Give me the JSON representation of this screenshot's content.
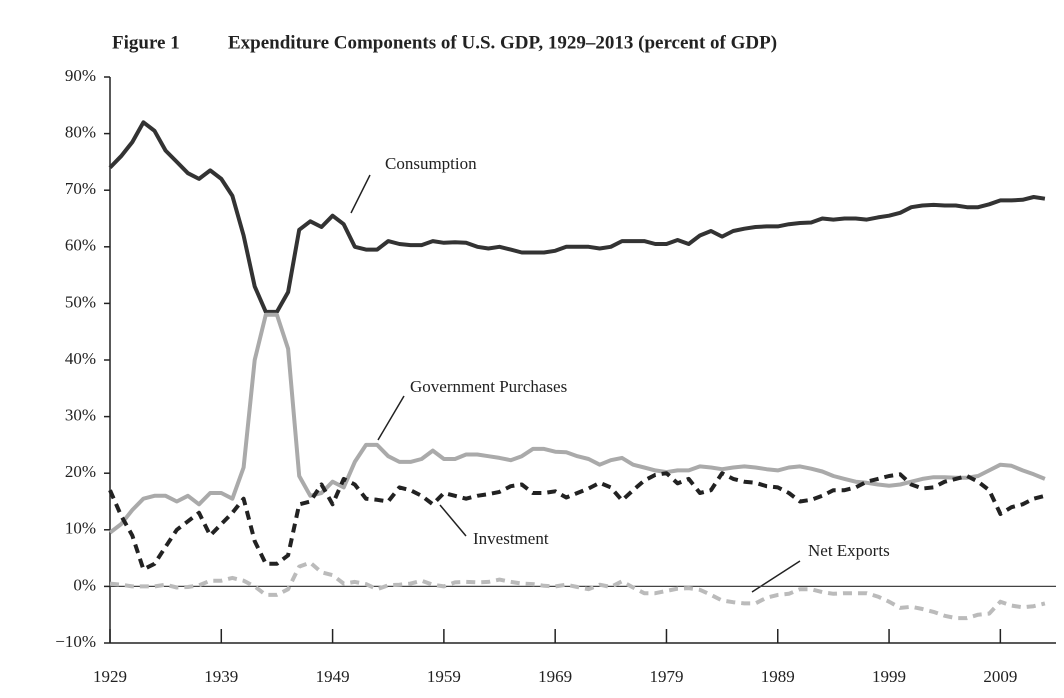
{
  "chart_data": {
    "type": "line",
    "figure_label": "Figure 1",
    "title": "Expenditure Components of U.S. GDP, 1929–2013 (percent of GDP)",
    "x": [
      1929,
      1930,
      1931,
      1932,
      1933,
      1934,
      1935,
      1936,
      1937,
      1938,
      1939,
      1940,
      1941,
      1942,
      1943,
      1944,
      1945,
      1946,
      1947,
      1948,
      1949,
      1950,
      1951,
      1952,
      1953,
      1954,
      1955,
      1956,
      1957,
      1958,
      1959,
      1960,
      1961,
      1962,
      1963,
      1964,
      1965,
      1966,
      1967,
      1968,
      1969,
      1970,
      1971,
      1972,
      1973,
      1974,
      1975,
      1976,
      1977,
      1978,
      1979,
      1980,
      1981,
      1982,
      1983,
      1984,
      1985,
      1986,
      1987,
      1988,
      1989,
      1990,
      1991,
      1992,
      1993,
      1994,
      1995,
      1996,
      1997,
      1998,
      1999,
      2000,
      2001,
      2002,
      2003,
      2004,
      2005,
      2006,
      2007,
      2008,
      2009,
      2010,
      2011,
      2012,
      2013
    ],
    "series": [
      {
        "name": "Consumption",
        "color": "#333333",
        "dash": false,
        "values": [
          74,
          76,
          78.5,
          82,
          80.5,
          77,
          75,
          73,
          72,
          73.5,
          72,
          69,
          62,
          53,
          48.5,
          48.5,
          52,
          63,
          64.5,
          63.5,
          65.5,
          64,
          60,
          59.5,
          59.5,
          61,
          60.5,
          60.3,
          60.3,
          61,
          60.7,
          60.8,
          60.7,
          60,
          59.7,
          60,
          59.5,
          59,
          59,
          59,
          59.3,
          60,
          60,
          60,
          59.7,
          60,
          61,
          61,
          61,
          60.5,
          60.5,
          61.2,
          60.5,
          62,
          62.8,
          61.8,
          62.8,
          63.2,
          63.5,
          63.6,
          63.6,
          64,
          64.2,
          64.3,
          65,
          64.8,
          65,
          65,
          64.8,
          65.2,
          65.5,
          66,
          67,
          67.3,
          67.4,
          67.3,
          67.3,
          67,
          67,
          67.5,
          68.2,
          68.2,
          68.3,
          68.8,
          68.5
        ]
      },
      {
        "name": "Government Purchases",
        "color": "#aaaaaa",
        "dash": false,
        "values": [
          9.5,
          11,
          13.5,
          15.5,
          16,
          16,
          15,
          16,
          14.5,
          16.5,
          16.5,
          15.5,
          21,
          40,
          48,
          48,
          42,
          19.5,
          16,
          16.5,
          18.5,
          17.5,
          22,
          25,
          25,
          23,
          22,
          22,
          22.5,
          24,
          22.5,
          22.5,
          23.3,
          23.3,
          23,
          22.7,
          22.3,
          23,
          24.3,
          24.3,
          23.8,
          23.7,
          23,
          22.5,
          21.5,
          22.3,
          22.7,
          21.5,
          21,
          20.5,
          20.2,
          20.5,
          20.5,
          21.2,
          21,
          20.7,
          21,
          21.2,
          21,
          20.7,
          20.5,
          21,
          21.2,
          20.8,
          20.3,
          19.5,
          19,
          18.5,
          18.3,
          18,
          17.8,
          18,
          18.5,
          19,
          19.3,
          19.3,
          19.2,
          19.2,
          19.5,
          20.5,
          21.5,
          21.3,
          20.5,
          19.8,
          19
        ]
      },
      {
        "name": "Investment",
        "color": "#222222",
        "dash": true,
        "values": [
          17,
          12.5,
          9,
          3,
          4,
          7,
          10,
          11.5,
          13,
          9,
          11,
          13,
          15.5,
          8,
          4,
          4,
          5.5,
          14.5,
          15,
          18,
          14.5,
          19,
          18,
          15.5,
          15.3,
          15,
          17.5,
          17,
          16,
          14.5,
          16.5,
          16,
          15.5,
          16,
          16.3,
          16.7,
          17.7,
          18,
          16.5,
          16.5,
          16.8,
          15.7,
          16.5,
          17.3,
          18.3,
          17.5,
          15.2,
          17,
          18.7,
          19.7,
          20,
          18.2,
          19,
          16.5,
          17,
          20,
          19,
          18.5,
          18.3,
          17.7,
          17.5,
          16.5,
          15,
          15.3,
          16,
          17,
          17,
          17.5,
          18.5,
          19,
          19.5,
          19.8,
          18,
          17.3,
          17.5,
          18.5,
          19,
          19.5,
          18.5,
          17,
          12.8,
          14,
          14.5,
          15.5,
          16
        ]
      },
      {
        "name": "Net Exports",
        "color": "#bbbbbb",
        "dash": true,
        "values": [
          0.5,
          0.3,
          0,
          0,
          0,
          0.3,
          -0.2,
          -0.1,
          0.2,
          1,
          1,
          1.5,
          1,
          0,
          -1.5,
          -1.5,
          -0.5,
          3.5,
          4.2,
          2.5,
          2,
          0.5,
          0.8,
          0.4,
          -0.5,
          0.2,
          0.3,
          0.5,
          1,
          0.3,
          0,
          0.7,
          0.8,
          0.7,
          0.8,
          1.2,
          0.8,
          0.5,
          0.4,
          0.1,
          0,
          0.3,
          -0.1,
          -0.5,
          0.3,
          -0.1,
          0.9,
          -0.2,
          -1.2,
          -1.2,
          -0.8,
          -0.4,
          -0.3,
          -0.6,
          -1.5,
          -2.5,
          -2.8,
          -3,
          -3,
          -2,
          -1.5,
          -1.3,
          -0.5,
          -0.5,
          -1,
          -1.3,
          -1.2,
          -1.2,
          -1.2,
          -1.8,
          -2.7,
          -3.8,
          -3.6,
          -4,
          -4.5,
          -5.2,
          -5.6,
          -5.6,
          -5,
          -4.8,
          -2.7,
          -3.4,
          -3.7,
          -3.5,
          -3
        ]
      }
    ],
    "xlim": [
      1929,
      2014
    ],
    "xticks": [
      1929,
      1939,
      1949,
      1959,
      1969,
      1979,
      1989,
      1999,
      2009
    ],
    "ylim": [
      -10,
      90
    ],
    "yticks": [
      {
        "value": -10,
        "label": "−10%"
      },
      {
        "value": 0,
        "label": "0%"
      },
      {
        "value": 10,
        "label": "10%"
      },
      {
        "value": 20,
        "label": "20%"
      },
      {
        "value": 30,
        "label": "30%"
      },
      {
        "value": 40,
        "label": "40%"
      },
      {
        "value": 50,
        "label": "50%"
      },
      {
        "value": 60,
        "label": "60%"
      },
      {
        "value": 70,
        "label": "70%"
      },
      {
        "value": 80,
        "label": "80%"
      },
      {
        "value": 90,
        "label": "90%"
      }
    ],
    "grid": false
  }
}
